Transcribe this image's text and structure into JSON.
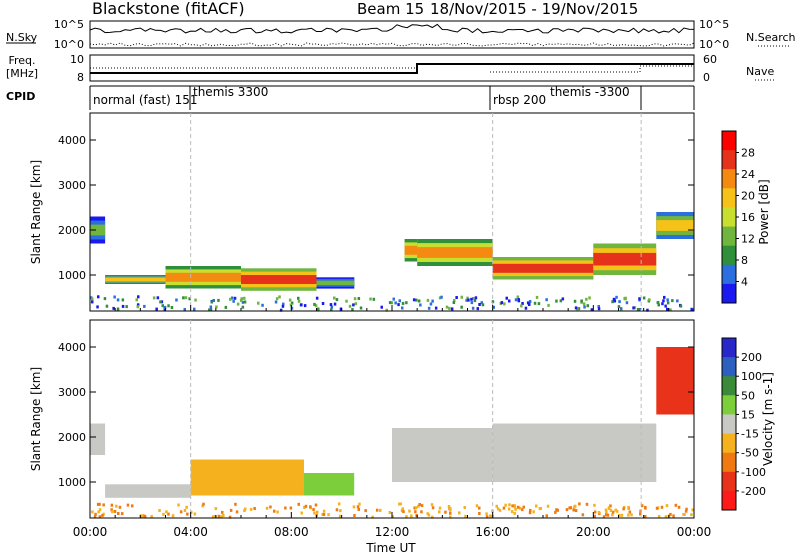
{
  "header": {
    "title": "Blackstone (fitACF)",
    "beam": "Beam 15",
    "dates": "18/Nov/2015 - 19/Nov/2015"
  },
  "status_panels": {
    "nsky_label": "N.Sky",
    "nsearch_label": "N.Search",
    "nsky_ticks": [
      "10^5",
      "10^0"
    ],
    "freq_label_1": "Freq.",
    "freq_label_2": "[MHz]",
    "freq_ticks": [
      "10",
      "8"
    ],
    "nave_label": "Nave",
    "nave_ticks": [
      "60",
      "0"
    ],
    "cpid_label": "CPID",
    "cpid_entries": [
      {
        "label": "normal (fast) 151",
        "start_hour": 0
      },
      {
        "label": "themis 3300",
        "start_hour": 4
      },
      {
        "label": "rbsp 200",
        "start_hour": 16
      },
      {
        "label": "themis -3300",
        "start_hour": 19.3
      }
    ]
  },
  "colors": {
    "power": [
      "#1a1af0",
      "#2b6ee0",
      "#2f8f3a",
      "#6fb53e",
      "#c9df2f",
      "#f5c21a",
      "#f58a12",
      "#e6321a",
      "#ff0000"
    ],
    "velocity": [
      "#2828c8",
      "#2d5fc0",
      "#3a8a3a",
      "#7ccf3a",
      "#c8c8c4",
      "#f5b21e",
      "#f07a12",
      "#e8321a",
      "#ff1a1a"
    ]
  },
  "chart_data": [
    {
      "type": "heatmap",
      "name": "power",
      "xlabel": "Time UT",
      "ylabel": "Slant Range [km]",
      "xlim": [
        0,
        24
      ],
      "ylim": [
        200,
        4600
      ],
      "x_ticks": [
        "00:00",
        "04:00",
        "08:00",
        "12:00",
        "16:00",
        "20:00",
        "00:00"
      ],
      "y_ticks": [
        "1000",
        "2000",
        "3000",
        "4000"
      ],
      "colorbar": {
        "label": "Power [dB]",
        "range": [
          0,
          32
        ],
        "ticks": [
          "4",
          "8",
          "12",
          "16",
          "20",
          "24",
          "28"
        ]
      },
      "bands": [
        {
          "t": [
            0.0,
            0.6
          ],
          "range": [
            1700,
            2300
          ],
          "level": 14
        },
        {
          "t": [
            0.6,
            3.0
          ],
          "range": [
            800,
            1000
          ],
          "level": 18
        },
        {
          "t": [
            3.0,
            6.0
          ],
          "range": [
            700,
            1200
          ],
          "level": 22
        },
        {
          "t": [
            6.0,
            9.0
          ],
          "range": [
            650,
            1150
          ],
          "level": 26
        },
        {
          "t": [
            9.0,
            10.5
          ],
          "range": [
            700,
            950
          ],
          "level": 14
        },
        {
          "t": [
            12.5,
            13.0
          ],
          "range": [
            1300,
            1800
          ],
          "level": 22
        },
        {
          "t": [
            13.0,
            16.0
          ],
          "range": [
            1200,
            1800
          ],
          "level": 24
        },
        {
          "t": [
            16.0,
            20.0
          ],
          "range": [
            900,
            1400
          ],
          "level": 26
        },
        {
          "t": [
            20.0,
            22.5
          ],
          "range": [
            1000,
            1700
          ],
          "level": 26
        },
        {
          "t": [
            22.5,
            24.0
          ],
          "range": [
            1800,
            2400
          ],
          "level": 20
        }
      ]
    },
    {
      "type": "heatmap",
      "name": "velocity",
      "xlabel": "Time UT",
      "ylabel": "Slant Range [km]",
      "xlim": [
        0,
        24
      ],
      "ylim": [
        200,
        4600
      ],
      "x_ticks": [
        "00:00",
        "04:00",
        "08:00",
        "12:00",
        "16:00",
        "20:00",
        "00:00"
      ],
      "y_ticks": [
        "1000",
        "2000",
        "3000",
        "4000"
      ],
      "colorbar": {
        "label": "Velocity [m s-1]",
        "range": [
          -250,
          250
        ],
        "ticks": [
          "200",
          "100",
          "50",
          "15",
          "-15",
          "-50",
          "-100",
          "-200"
        ]
      },
      "bands": [
        {
          "t": [
            0.0,
            0.6
          ],
          "range": [
            1600,
            2300
          ],
          "value": -10
        },
        {
          "t": [
            0.6,
            4.0
          ],
          "range": [
            650,
            950
          ],
          "value": -10
        },
        {
          "t": [
            4.0,
            8.5
          ],
          "range": [
            700,
            1500
          ],
          "value": -40
        },
        {
          "t": [
            8.5,
            10.5
          ],
          "range": [
            700,
            1200
          ],
          "value": 30
        },
        {
          "t": [
            12.0,
            16.0
          ],
          "range": [
            1000,
            2200
          ],
          "value": -10
        },
        {
          "t": [
            16.0,
            22.5
          ],
          "range": [
            1000,
            2300
          ],
          "value": -10
        },
        {
          "t": [
            22.5,
            24.0
          ],
          "range": [
            2500,
            4000
          ],
          "value": -200
        }
      ]
    }
  ],
  "legend_note": "Time UT"
}
